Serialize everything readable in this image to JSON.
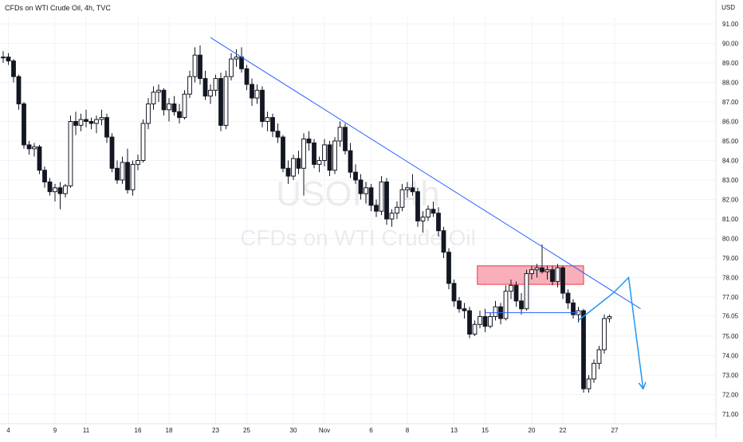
{
  "header": {
    "title": "CFDs on WTI Crude Oil, 4h, TVC",
    "currency": "USD"
  },
  "watermark": {
    "symbol": "USOIL, 4h",
    "description": "CFDs on WTI Crude Oil"
  },
  "colors": {
    "candle": "#131722",
    "trendline": "#2962ff",
    "zone_fill": "#f7a1ad",
    "zone_border": "#f23645",
    "projection": "#2196f3",
    "grid": "#f0f3fa",
    "axis_text": "#131722"
  },
  "chart_data": {
    "type": "candlestick",
    "symbol": "WTI Crude Oil",
    "timeframe": "4h",
    "ylim": [
      70.5,
      92.5
    ],
    "yticks": [
      71.0,
      72.0,
      73.0,
      74.0,
      75.0,
      76.05,
      77.0,
      78.0,
      79.0,
      80.0,
      81.0,
      82.0,
      83.0,
      84.0,
      85.0,
      86.0,
      87.0,
      88.0,
      89.0,
      90.0,
      91.0
    ],
    "ytick_labels": [
      "71.00",
      "72.00",
      "73.00",
      "74.00",
      "75.00",
      "76.05",
      "77.00",
      "78.00",
      "79.00",
      "80.00",
      "81.00",
      "82.00",
      "83.00",
      "84.00",
      "85.00",
      "86.00",
      "87.00",
      "88.00",
      "89.00",
      "90.00",
      "91.00"
    ],
    "xlim": [
      0,
      124
    ],
    "xticks": [
      {
        "label": "4",
        "x": 1
      },
      {
        "label": "9",
        "x": 10
      },
      {
        "label": "11",
        "x": 16
      },
      {
        "label": "16",
        "x": 26
      },
      {
        "label": "18",
        "x": 32
      },
      {
        "label": "23",
        "x": 41
      },
      {
        "label": "25",
        "x": 47
      },
      {
        "label": "30",
        "x": 56
      },
      {
        "label": "Nov",
        "x": 62
      },
      {
        "label": "6",
        "x": 71
      },
      {
        "label": "8",
        "x": 78
      },
      {
        "label": "13",
        "x": 87
      },
      {
        "label": "15",
        "x": 93
      },
      {
        "label": "20",
        "x": 102
      },
      {
        "label": "22",
        "x": 108
      },
      {
        "label": "27",
        "x": 118
      }
    ],
    "ohlc": [
      [
        89.3,
        89.6,
        89.0,
        89.3
      ],
      [
        89.3,
        89.5,
        88.9,
        89.1
      ],
      [
        89.1,
        89.2,
        88.0,
        88.3
      ],
      [
        88.3,
        88.4,
        86.6,
        86.9
      ],
      [
        86.9,
        87.0,
        84.6,
        84.8
      ],
      [
        84.8,
        85.0,
        84.3,
        84.6
      ],
      [
        84.6,
        84.9,
        84.2,
        84.7
      ],
      [
        84.7,
        84.8,
        83.3,
        83.5
      ],
      [
        83.5,
        83.7,
        82.6,
        82.9
      ],
      [
        82.9,
        83.1,
        82.2,
        82.4
      ],
      [
        82.4,
        82.8,
        81.9,
        82.6
      ],
      [
        82.6,
        82.9,
        81.5,
        82.3
      ],
      [
        82.3,
        82.8,
        82.1,
        82.7
      ],
      [
        82.7,
        86.3,
        82.6,
        86.0
      ],
      [
        86.0,
        86.5,
        85.3,
        85.8
      ],
      [
        85.8,
        86.4,
        85.5,
        86.1
      ],
      [
        86.1,
        86.6,
        85.7,
        86.0
      ],
      [
        86.0,
        86.2,
        85.6,
        85.9
      ],
      [
        85.9,
        86.3,
        85.4,
        86.1
      ],
      [
        86.1,
        86.6,
        85.8,
        86.2
      ],
      [
        86.2,
        86.4,
        84.9,
        85.2
      ],
      [
        85.2,
        85.4,
        83.4,
        83.6
      ],
      [
        83.6,
        84.0,
        82.8,
        83.0
      ],
      [
        83.0,
        84.2,
        82.8,
        83.9
      ],
      [
        83.9,
        84.6,
        82.3,
        82.5
      ],
      [
        82.5,
        84.0,
        82.2,
        83.8
      ],
      [
        83.8,
        84.3,
        83.5,
        84.0
      ],
      [
        84.0,
        86.1,
        83.9,
        85.9
      ],
      [
        85.9,
        87.2,
        85.6,
        86.9
      ],
      [
        86.9,
        87.8,
        86.6,
        87.5
      ],
      [
        87.5,
        87.9,
        87.0,
        87.6
      ],
      [
        87.6,
        87.7,
        86.3,
        86.6
      ],
      [
        86.6,
        87.2,
        86.0,
        86.9
      ],
      [
        86.9,
        87.3,
        86.3,
        86.5
      ],
      [
        86.5,
        86.9,
        85.9,
        86.2
      ],
      [
        86.2,
        87.6,
        86.1,
        87.4
      ],
      [
        87.4,
        88.6,
        87.2,
        88.3
      ],
      [
        88.3,
        89.8,
        88.0,
        89.4
      ],
      [
        89.4,
        89.9,
        87.9,
        88.2
      ],
      [
        88.2,
        88.6,
        87.1,
        87.3
      ],
      [
        87.3,
        87.9,
        86.9,
        87.6
      ],
      [
        87.6,
        88.4,
        87.3,
        88.2
      ],
      [
        88.2,
        88.5,
        85.5,
        85.8
      ],
      [
        85.8,
        88.6,
        85.6,
        88.3
      ],
      [
        88.3,
        89.5,
        88.1,
        89.2
      ],
      [
        89.2,
        89.7,
        88.8,
        89.3
      ],
      [
        89.3,
        89.8,
        88.5,
        88.7
      ],
      [
        88.7,
        88.9,
        87.6,
        87.9
      ],
      [
        87.9,
        88.2,
        86.8,
        87.2
      ],
      [
        87.2,
        87.9,
        86.9,
        87.6
      ],
      [
        87.6,
        87.8,
        85.7,
        86.0
      ],
      [
        86.0,
        86.5,
        85.5,
        86.2
      ],
      [
        86.2,
        86.4,
        85.2,
        85.5
      ],
      [
        85.5,
        85.9,
        84.9,
        85.2
      ],
      [
        85.2,
        85.3,
        83.4,
        83.6
      ],
      [
        83.6,
        84.0,
        82.8,
        83.2
      ],
      [
        83.2,
        84.3,
        83.0,
        84.1
      ],
      [
        84.1,
        84.5,
        83.3,
        83.6
      ],
      [
        83.6,
        85.4,
        82.2,
        85.1
      ],
      [
        85.1,
        85.5,
        84.5,
        84.9
      ],
      [
        84.9,
        85.1,
        83.6,
        83.8
      ],
      [
        83.8,
        84.2,
        83.4,
        84.0
      ],
      [
        84.0,
        85.1,
        83.7,
        84.8
      ],
      [
        84.8,
        85.0,
        83.2,
        83.5
      ],
      [
        83.5,
        85.2,
        83.3,
        85.0
      ],
      [
        85.0,
        86.0,
        84.7,
        85.7
      ],
      [
        85.7,
        85.9,
        84.3,
        84.5
      ],
      [
        84.5,
        84.9,
        83.1,
        83.4
      ],
      [
        83.4,
        83.8,
        82.8,
        83.0
      ],
      [
        83.0,
        83.3,
        82.0,
        82.3
      ],
      [
        82.3,
        82.9,
        81.8,
        82.6
      ],
      [
        82.6,
        82.8,
        81.4,
        81.7
      ],
      [
        81.7,
        82.0,
        81.1,
        81.4
      ],
      [
        81.4,
        83.2,
        81.2,
        82.9
      ],
      [
        82.9,
        83.1,
        80.7,
        81.0
      ],
      [
        81.0,
        81.5,
        80.6,
        81.3
      ],
      [
        81.3,
        81.9,
        81.0,
        81.6
      ],
      [
        81.6,
        82.8,
        81.4,
        82.5
      ],
      [
        82.5,
        82.9,
        82.1,
        82.6
      ],
      [
        82.6,
        83.3,
        82.2,
        82.4
      ],
      [
        82.4,
        82.6,
        80.6,
        80.9
      ],
      [
        80.9,
        81.4,
        80.3,
        81.1
      ],
      [
        81.1,
        81.7,
        80.9,
        81.5
      ],
      [
        81.5,
        81.9,
        81.1,
        81.3
      ],
      [
        81.3,
        81.6,
        80.1,
        80.4
      ],
      [
        80.4,
        80.6,
        79.0,
        79.3
      ],
      [
        79.3,
        79.5,
        77.4,
        77.7
      ],
      [
        77.7,
        77.9,
        76.5,
        76.8
      ],
      [
        76.8,
        77.0,
        76.2,
        76.4
      ],
      [
        76.4,
        76.7,
        75.9,
        76.3
      ],
      [
        76.3,
        76.5,
        74.9,
        75.1
      ],
      [
        75.1,
        75.8,
        75.0,
        75.6
      ],
      [
        75.6,
        76.3,
        75.4,
        76.0
      ],
      [
        76.0,
        76.4,
        75.2,
        75.5
      ],
      [
        75.5,
        76.2,
        75.4,
        76.0
      ],
      [
        76.0,
        76.8,
        75.8,
        76.5
      ],
      [
        76.5,
        76.7,
        75.6,
        75.9
      ],
      [
        75.9,
        77.6,
        75.8,
        77.3
      ],
      [
        77.3,
        77.9,
        76.9,
        77.6
      ],
      [
        77.6,
        77.8,
        76.5,
        76.8
      ],
      [
        76.8,
        77.2,
        76.1,
        76.4
      ],
      [
        76.4,
        78.4,
        76.3,
        78.2
      ],
      [
        78.2,
        78.6,
        77.9,
        78.4
      ],
      [
        78.4,
        78.7,
        78.0,
        78.5
      ],
      [
        78.5,
        79.7,
        78.2,
        78.3
      ],
      [
        78.3,
        78.6,
        77.9,
        78.4
      ],
      [
        78.4,
        78.6,
        77.6,
        77.8
      ],
      [
        77.8,
        78.7,
        77.5,
        78.5
      ],
      [
        78.5,
        78.6,
        76.9,
        77.2
      ],
      [
        77.2,
        77.4,
        76.4,
        76.7
      ],
      [
        76.7,
        76.9,
        75.9,
        76.1
      ],
      [
        76.1,
        76.5,
        75.7,
        76.3
      ],
      [
        76.3,
        76.4,
        72.1,
        72.3
      ],
      [
        72.3,
        73.0,
        72.1,
        72.8
      ],
      [
        72.8,
        73.8,
        72.6,
        73.6
      ],
      [
        73.6,
        74.5,
        73.3,
        74.3
      ],
      [
        74.3,
        76.1,
        74.1,
        75.9
      ],
      [
        75.9,
        76.1,
        75.7,
        76.0
      ]
    ],
    "annotations": {
      "trendline": {
        "from": [
          40,
          90.3
        ],
        "to": [
          123,
          76.4
        ]
      },
      "resistance_zone": {
        "x": [
          91.5,
          112
        ],
        "y": [
          77.65,
          78.6
        ]
      },
      "support_line": {
        "x": [
          93,
          111
        ],
        "y": 76.2
      },
      "projection_path": [
        [
          111,
          75.8
        ],
        [
          117.7,
          77.2
        ],
        [
          120.7,
          78.0
        ],
        [
          123.5,
          72.3
        ]
      ]
    }
  }
}
